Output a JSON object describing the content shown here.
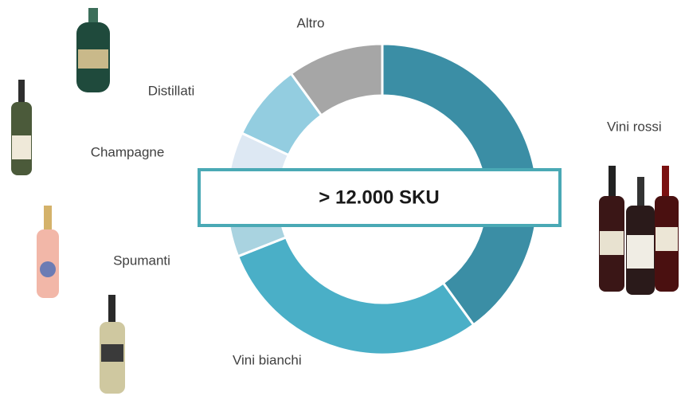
{
  "chart_data": {
    "type": "donut",
    "center_label": "> 12.000 SKU",
    "categories": [
      "Vini rossi",
      "Vini bianchi",
      "Spumanti",
      "Champagne",
      "Distillati",
      "Altro"
    ],
    "values": [
      40,
      29,
      7,
      6,
      8,
      10
    ],
    "colors": [
      "#3b8ea5",
      "#4aafc7",
      "#a9d3e0",
      "#dde8f3",
      "#93cde0",
      "#a6a6a6"
    ]
  }
}
